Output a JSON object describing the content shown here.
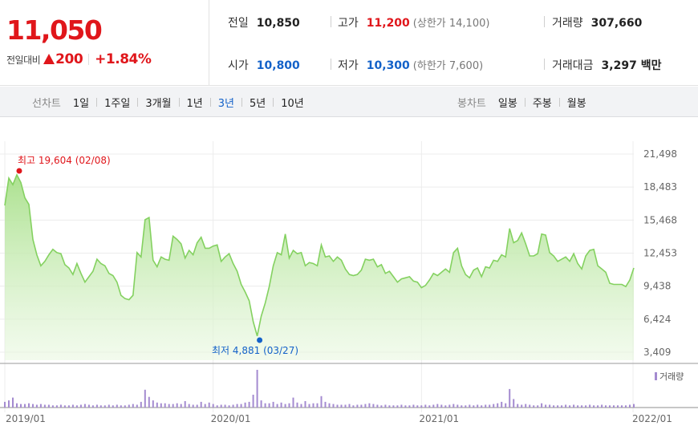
{
  "summary": {
    "current_price": "11,050",
    "change_label": "전일대비",
    "change_amount": "200",
    "change_rate": "+1.84%",
    "prev_close": {
      "label": "전일",
      "value": "10,850"
    },
    "high": {
      "label": "고가",
      "value": "11,200",
      "sub": "(상한가 14,100)"
    },
    "volume": {
      "label": "거래량",
      "value": "307,660"
    },
    "open": {
      "label": "시가",
      "value": "10,800"
    },
    "low": {
      "label": "저가",
      "value": "10,300",
      "sub": "(하한가 7,600)"
    },
    "amount": {
      "label": "거래대금",
      "value": "3,297 백만"
    }
  },
  "colors": {
    "up": "#e0161b",
    "down": "#1462c9",
    "line": "#84d160",
    "volume_bar": "#a48bd0"
  },
  "line_chart": {
    "title": "선차트",
    "periods": [
      "1일",
      "1주일",
      "3개월",
      "1년",
      "3년",
      "5년",
      "10년"
    ],
    "active": "3년"
  },
  "candle_chart": {
    "title": "봉차트",
    "periods": [
      "일봉",
      "주봉",
      "월봉"
    ]
  },
  "chart_data": {
    "type": "line",
    "title": "",
    "xlabel": "",
    "ylabel": "",
    "ylim": [
      3409,
      21498
    ],
    "y_ticks": [
      "21,498",
      "18,483",
      "15,468",
      "12,453",
      "9,438",
      "6,424",
      "3,409"
    ],
    "y_tick_values": [
      21498,
      18483,
      15468,
      12453,
      9438,
      6424,
      3409
    ],
    "x_ticks": [
      {
        "label": "2019/01",
        "week": 0
      },
      {
        "label": "2020/01",
        "week": 52
      },
      {
        "label": "2021/01",
        "week": 104
      },
      {
        "label": "2022/01",
        "week": 157
      }
    ],
    "x_range_weeks": [
      0,
      157
    ],
    "grid": true,
    "max_annotation": {
      "label": "최고",
      "value": "19,604",
      "date": "(02/08)",
      "week": 3,
      "price": 19604
    },
    "min_annotation": {
      "label": "최저",
      "value": "4,881",
      "date": "(03/27)",
      "week": 63,
      "price": 4881
    },
    "price_series": {
      "name": "",
      "weeks": [
        0,
        1,
        2,
        3,
        4,
        5,
        6,
        7,
        8,
        9,
        10,
        11,
        12,
        13,
        14,
        15,
        16,
        17,
        18,
        19,
        20,
        21,
        22,
        23,
        24,
        25,
        26,
        27,
        28,
        29,
        30,
        31,
        32,
        33,
        34,
        35,
        36,
        37,
        38,
        39,
        40,
        41,
        42,
        43,
        44,
        45,
        46,
        47,
        48,
        49,
        50,
        51,
        52,
        53,
        54,
        55,
        56,
        57,
        58,
        59,
        60,
        61,
        62,
        63,
        64,
        65,
        66,
        67,
        68,
        69,
        70,
        71,
        72,
        73,
        74,
        75,
        76,
        77,
        78,
        79,
        80,
        81,
        82,
        83,
        84,
        85,
        86,
        87,
        88,
        89,
        90,
        91,
        92,
        93,
        94,
        95,
        96,
        97,
        98,
        99,
        100,
        101,
        102,
        103,
        104,
        105,
        106,
        107,
        108,
        109,
        110,
        111,
        112,
        113,
        114,
        115,
        116,
        117,
        118,
        119,
        120,
        121,
        122,
        123,
        124,
        125,
        126,
        127,
        128,
        129,
        130,
        131,
        132,
        133,
        134,
        135,
        136,
        137,
        138,
        139,
        140,
        141,
        142,
        143,
        144,
        145,
        146,
        147,
        148,
        149,
        150,
        151,
        152,
        153,
        154,
        155,
        156,
        157
      ],
      "values": [
        16800,
        19300,
        18700,
        19604,
        18900,
        17500,
        16900,
        13700,
        12300,
        11300,
        11700,
        12300,
        12800,
        12500,
        12400,
        11400,
        11100,
        10500,
        11500,
        10600,
        9800,
        10300,
        10800,
        11900,
        11500,
        11300,
        10600,
        10400,
        9800,
        8600,
        8300,
        8200,
        8600,
        12500,
        12100,
        15500,
        15700,
        11800,
        11200,
        12100,
        11900,
        11800,
        14000,
        13700,
        13300,
        12000,
        12700,
        12300,
        13400,
        13900,
        12900,
        12900,
        13100,
        13200,
        11700,
        12100,
        12400,
        11500,
        10800,
        9600,
        8900,
        8100,
        6200,
        4881,
        6700,
        7900,
        9400,
        11300,
        12500,
        12300,
        14200,
        12000,
        12700,
        12400,
        12500,
        11300,
        11600,
        11500,
        11300,
        13200,
        12100,
        12200,
        11700,
        12100,
        11800,
        11000,
        10500,
        10400,
        10500,
        10900,
        11900,
        11800,
        11900,
        11200,
        11400,
        10600,
        10800,
        10300,
        9800,
        10100,
        10200,
        10300,
        9900,
        9800,
        9300,
        9500,
        10000,
        10600,
        10400,
        10700,
        11000,
        10700,
        12500,
        12900,
        11300,
        10500,
        10200,
        10900,
        11100,
        10300,
        11200,
        11100,
        11800,
        11700,
        12300,
        12100,
        14700,
        13400,
        13600,
        14300,
        13300,
        12200,
        12200,
        12400,
        14200,
        14100,
        12500,
        12200,
        11700,
        11900,
        12100,
        11700,
        12400,
        11500,
        11000,
        12200,
        12700,
        12800,
        11300,
        11000,
        10700,
        9700,
        9600,
        9600,
        9600,
        9400,
        10000,
        11100
      ]
    },
    "volume_series": {
      "name": "거래량",
      "values": [
        8,
        10,
        14,
        6,
        5,
        5,
        6,
        5,
        4,
        5,
        4,
        4,
        3,
        3,
        4,
        3,
        3,
        4,
        3,
        4,
        5,
        4,
        3,
        4,
        3,
        3,
        4,
        3,
        4,
        3,
        3,
        4,
        5,
        4,
        8,
        25,
        15,
        10,
        7,
        6,
        6,
        5,
        5,
        6,
        5,
        9,
        5,
        4,
        4,
        8,
        5,
        7,
        5,
        3,
        4,
        4,
        3,
        4,
        5,
        5,
        7,
        8,
        18,
        53,
        10,
        6,
        6,
        8,
        5,
        7,
        5,
        6,
        14,
        7,
        5,
        9,
        5,
        6,
        6,
        16,
        8,
        6,
        5,
        4,
        4,
        4,
        5,
        3,
        4,
        4,
        5,
        6,
        5,
        4,
        3,
        4,
        3,
        3,
        3,
        4,
        3,
        3,
        4,
        3,
        3,
        4,
        3,
        4,
        5,
        4,
        3,
        4,
        5,
        4,
        3,
        3,
        4,
        3,
        4,
        3,
        4,
        4,
        5,
        6,
        8,
        6,
        26,
        12,
        5,
        4,
        5,
        4,
        3,
        3,
        6,
        4,
        4,
        3,
        3,
        3,
        4,
        3,
        4,
        3,
        3,
        3,
        4,
        3,
        3,
        4,
        3,
        3,
        3,
        3,
        3,
        3,
        4,
        5
      ]
    }
  }
}
